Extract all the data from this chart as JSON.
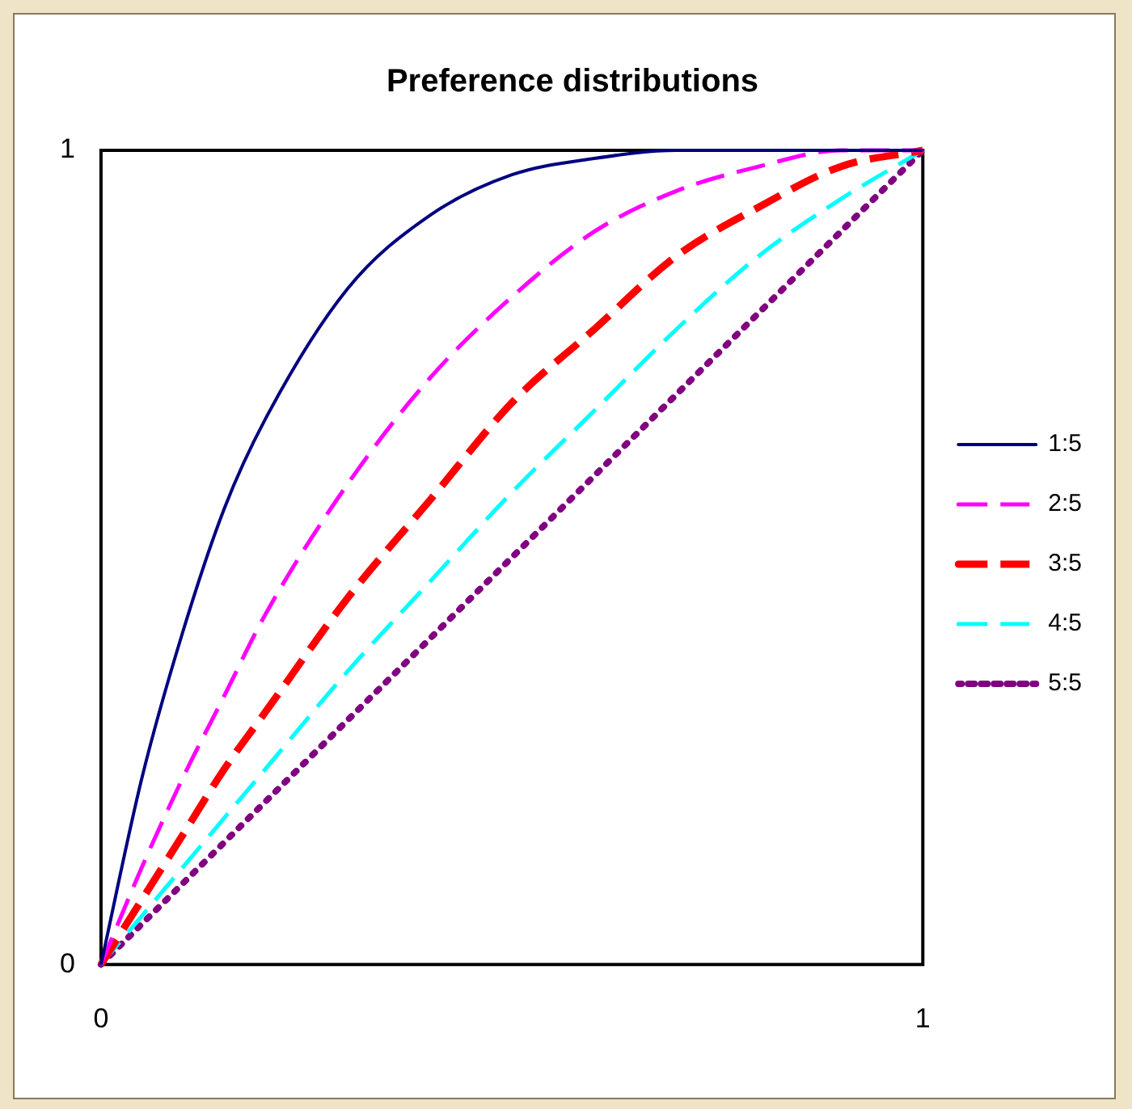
{
  "chart_data": {
    "type": "line",
    "title": "Preference distributions",
    "x": [
      0,
      0.05,
      0.1,
      0.15,
      0.2,
      0.3,
      0.4,
      0.5,
      0.6,
      0.7,
      0.8,
      0.9,
      1
    ],
    "series": [
      {
        "name": "1:5",
        "color": "#000080",
        "line_style": "solid",
        "values": [
          0,
          0.23,
          0.41,
          0.56,
          0.67,
          0.83,
          0.92,
          0.97,
          0.99,
          1,
          1,
          1,
          1
        ]
      },
      {
        "name": "2:5",
        "color": "#ff00ff",
        "line_style": "dashed",
        "values": [
          0,
          0.12,
          0.23,
          0.33,
          0.43,
          0.59,
          0.72,
          0.82,
          0.9,
          0.95,
          0.98,
          1,
          1
        ]
      },
      {
        "name": "3:5",
        "color": "#ff0000",
        "line_style": "dashed",
        "values": [
          0,
          0.08,
          0.16,
          0.24,
          0.31,
          0.45,
          0.57,
          0.69,
          0.78,
          0.87,
          0.93,
          0.98,
          1
        ]
      },
      {
        "name": "4:5",
        "color": "#00ffff",
        "line_style": "dashed",
        "values": [
          0,
          0.06,
          0.12,
          0.18,
          0.24,
          0.36,
          0.47,
          0.58,
          0.68,
          0.78,
          0.87,
          0.94,
          1
        ]
      },
      {
        "name": "5:5",
        "color": "#800080",
        "line_style": "dotted",
        "values": [
          0,
          0.05,
          0.1,
          0.15,
          0.2,
          0.3,
          0.4,
          0.5,
          0.6,
          0.7,
          0.8,
          0.9,
          1
        ]
      }
    ],
    "xlim": [
      0,
      1
    ],
    "ylim": [
      0,
      1
    ],
    "xticks": [
      0,
      1
    ],
    "yticks": [
      0,
      1
    ],
    "grid": false,
    "legend": "right",
    "marker": "none"
  }
}
